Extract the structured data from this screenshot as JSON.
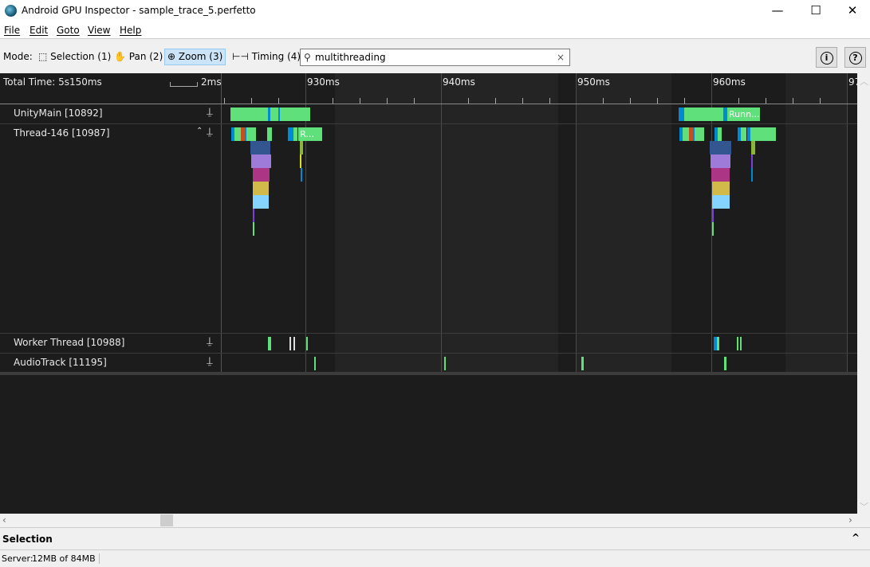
{
  "window": {
    "title": "Android GPU Inspector - sample_trace_5.perfetto",
    "minimize": "—",
    "maximize": "☐",
    "close": "✕"
  },
  "menu": [
    "File",
    "Edit",
    "Goto",
    "View",
    "Help"
  ],
  "toolbar": {
    "mode_label": "Mode:",
    "modes": [
      {
        "label": "Selection (1)",
        "icon": "selection-icon",
        "glyph": "⬚"
      },
      {
        "label": "Pan (2)",
        "icon": "hand-icon",
        "glyph": "✋"
      },
      {
        "label": "Zoom (3)",
        "icon": "zoom-icon",
        "glyph": "⊕",
        "active": true
      },
      {
        "label": "Timing (4)",
        "icon": "timing-icon",
        "glyph": "⊢⊣"
      }
    ],
    "search": {
      "value": "multithreading",
      "icon": "search-icon",
      "clear": "×"
    },
    "info": "i",
    "help": "?"
  },
  "timeline": {
    "total_time": "Total Time: 5s150ms",
    "scale_label": "2ms",
    "ticks": [
      {
        "ms": 930,
        "label": "930ms"
      },
      {
        "ms": 940,
        "label": "940ms"
      },
      {
        "ms": 950,
        "label": "950ms"
      },
      {
        "ms": 960,
        "label": "960ms"
      },
      {
        "ms": 970,
        "label": "97"
      }
    ],
    "colors": {
      "green": "#5fe07b",
      "blue": "#0189d1",
      "orange": "#c0531d",
      "navy": "#335590",
      "purple": "#9e7bd8",
      "magenta": "#ad3585",
      "gold": "#d1b94a",
      "lightblue": "#85d4ff",
      "olive": "#8bb33d",
      "yellow": "#d7e021",
      "violet": "#7b3fe0",
      "white": "#dddddd"
    },
    "tracks": [
      {
        "name": "UnityMain [10892]",
        "slices": [
          {
            "d": 0,
            "s": 924.46,
            "e": 930.35,
            "c": "green"
          },
          {
            "d": 0,
            "s": 927.23,
            "e": 927.41,
            "c": "blue"
          },
          {
            "d": 0,
            "s": 928.0,
            "e": 928.12,
            "c": "blue"
          },
          {
            "d": 0,
            "s": 957.57,
            "e": 957.98,
            "c": "blue"
          },
          {
            "d": 0,
            "s": 957.98,
            "e": 960.87,
            "c": "green"
          },
          {
            "d": 0,
            "s": 960.87,
            "e": 961.17,
            "c": "blue"
          },
          {
            "d": 0,
            "s": 961.17,
            "e": 963.59,
            "c": "green",
            "label": "Runn..."
          }
        ]
      },
      {
        "name": "Thread-146 [10987]",
        "expandable": true,
        "slices": [
          {
            "d": 0,
            "s": 924.52,
            "e": 924.76,
            "c": "blue"
          },
          {
            "d": 0,
            "s": 924.76,
            "e": 925.22,
            "c": "green"
          },
          {
            "d": 0,
            "s": 925.22,
            "e": 925.52,
            "c": "orange"
          },
          {
            "d": 0,
            "s": 925.52,
            "e": 925.64,
            "c": "blue"
          },
          {
            "d": 0,
            "s": 925.64,
            "e": 926.34,
            "c": "green"
          },
          {
            "d": 0,
            "s": 927.17,
            "e": 927.52,
            "c": "green"
          },
          {
            "d": 0,
            "s": 928.7,
            "e": 929.11,
            "c": "blue"
          },
          {
            "d": 0,
            "s": 929.11,
            "e": 929.41,
            "c": "green"
          },
          {
            "d": 0,
            "s": 929.47,
            "e": 931.23,
            "c": "green",
            "label": "R..."
          },
          {
            "d": 1,
            "s": 925.93,
            "e": 927.4,
            "c": "navy"
          },
          {
            "d": 1,
            "s": 929.58,
            "e": 929.82,
            "c": "olive"
          },
          {
            "d": 2,
            "s": 925.99,
            "e": 927.46,
            "c": "purple"
          },
          {
            "d": 2,
            "s": 929.6,
            "e": 929.66,
            "c": "yellow"
          },
          {
            "d": 3,
            "s": 926.11,
            "e": 927.35,
            "c": "magenta"
          },
          {
            "d": 3,
            "s": 929.64,
            "e": 929.7,
            "c": "blue"
          },
          {
            "d": 4,
            "s": 926.11,
            "e": 927.29,
            "c": "gold"
          },
          {
            "d": 5,
            "s": 926.11,
            "e": 927.29,
            "c": "lightblue"
          },
          {
            "d": 6,
            "s": 926.11,
            "e": 926.17,
            "c": "violet"
          },
          {
            "d": 7,
            "s": 926.11,
            "e": 926.17,
            "c": "green"
          },
          {
            "d": 0,
            "s": 957.63,
            "e": 957.86,
            "c": "blue"
          },
          {
            "d": 0,
            "s": 957.86,
            "e": 958.33,
            "c": "green"
          },
          {
            "d": 0,
            "s": 958.33,
            "e": 958.63,
            "c": "orange"
          },
          {
            "d": 0,
            "s": 958.63,
            "e": 958.74,
            "c": "blue"
          },
          {
            "d": 0,
            "s": 958.74,
            "e": 959.45,
            "c": "green"
          },
          {
            "d": 0,
            "s": 960.22,
            "e": 960.46,
            "c": "blue"
          },
          {
            "d": 0,
            "s": 960.46,
            "e": 960.75,
            "c": "green"
          },
          {
            "d": 0,
            "s": 961.93,
            "e": 962.16,
            "c": "blue"
          },
          {
            "d": 0,
            "s": 962.16,
            "e": 962.58,
            "c": "green"
          },
          {
            "d": 0,
            "s": 962.63,
            "e": 962.87,
            "c": "blue"
          },
          {
            "d": 0,
            "s": 962.87,
            "e": 964.75,
            "c": "green"
          },
          {
            "d": 1,
            "s": 959.86,
            "e": 961.45,
            "c": "navy"
          },
          {
            "d": 1,
            "s": 962.93,
            "e": 963.22,
            "c": "olive"
          },
          {
            "d": 2,
            "s": 959.92,
            "e": 961.39,
            "c": "purple"
          },
          {
            "d": 2,
            "s": 962.93,
            "e": 962.99,
            "c": "violet"
          },
          {
            "d": 3,
            "s": 959.98,
            "e": 961.33,
            "c": "magenta"
          },
          {
            "d": 3,
            "s": 962.93,
            "e": 962.99,
            "c": "blue"
          },
          {
            "d": 4,
            "s": 960.04,
            "e": 961.33,
            "c": "gold"
          },
          {
            "d": 5,
            "s": 960.04,
            "e": 961.33,
            "c": "lightblue"
          },
          {
            "d": 6,
            "s": 960.04,
            "e": 960.1,
            "c": "violet"
          },
          {
            "d": 7,
            "s": 960.04,
            "e": 960.1,
            "c": "green"
          }
        ]
      },
      {
        "name": "Worker Thread [10988]",
        "slices": [
          {
            "d": 0,
            "s": 927.23,
            "e": 927.46,
            "c": "green"
          },
          {
            "d": 0,
            "s": 928.82,
            "e": 928.88,
            "c": "white"
          },
          {
            "d": 0,
            "s": 929.11,
            "e": 929.17,
            "c": "white"
          },
          {
            "d": 0,
            "s": 930.06,
            "e": 930.12,
            "c": "green"
          },
          {
            "d": 0,
            "s": 960.16,
            "e": 960.39,
            "c": "blue"
          },
          {
            "d": 0,
            "s": 960.39,
            "e": 960.57,
            "c": "green"
          },
          {
            "d": 0,
            "s": 961.87,
            "e": 961.93,
            "c": "green"
          },
          {
            "d": 0,
            "s": 962.1,
            "e": 962.16,
            "c": "green"
          }
        ]
      },
      {
        "name": "AudioTrack [11195]",
        "slices": [
          {
            "d": 0,
            "s": 930.65,
            "e": 930.71,
            "c": "green"
          },
          {
            "d": 0,
            "s": 940.25,
            "e": 940.31,
            "c": "green"
          },
          {
            "d": 0,
            "s": 950.38,
            "e": 950.56,
            "c": "green"
          },
          {
            "d": 0,
            "s": 960.92,
            "e": 961.1,
            "c": "green"
          }
        ]
      }
    ]
  },
  "selection": {
    "title": "Selection",
    "toggle": "^"
  },
  "status": {
    "server_label": "Server:",
    "memory": "12MB of 84MB"
  }
}
